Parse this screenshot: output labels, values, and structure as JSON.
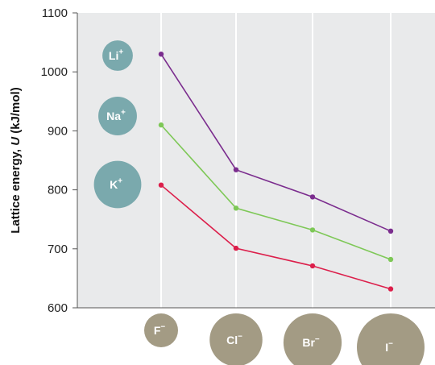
{
  "chart_data": {
    "type": "line",
    "title": "",
    "ylabel_pre": "Lattice energy, ",
    "ylabel_var": "U",
    "ylabel_post": " (kJ/mol)",
    "xlabel": "",
    "ylim": [
      600,
      1100
    ],
    "yticks": [
      600,
      700,
      800,
      900,
      1000,
      1100
    ],
    "grid": "vertical-only",
    "categories": [
      {
        "symbol": "F",
        "charge": "−",
        "size": 0.5
      },
      {
        "symbol": "Cl",
        "charge": "−",
        "size": 0.78
      },
      {
        "symbol": "Br",
        "charge": "−",
        "size": 0.86
      },
      {
        "symbol": "I",
        "charge": "−",
        "size": 1.0
      }
    ],
    "series": [
      {
        "name": "Li",
        "charge": "+",
        "size": 0.45,
        "color": "#7b2d8e",
        "values": [
          1030,
          834,
          788,
          730
        ]
      },
      {
        "name": "Na",
        "charge": "+",
        "size": 0.57,
        "color": "#7ec857",
        "values": [
          910,
          769,
          732,
          682
        ]
      },
      {
        "name": "K",
        "charge": "+",
        "size": 0.7,
        "color": "#dc1f4b",
        "values": [
          808,
          701,
          671,
          632
        ]
      }
    ],
    "colors": {
      "plot_bg": "#e9eaeb",
      "gridline": "#ffffff",
      "cation": "#7aa9ad",
      "anion": "#a39b84"
    }
  }
}
